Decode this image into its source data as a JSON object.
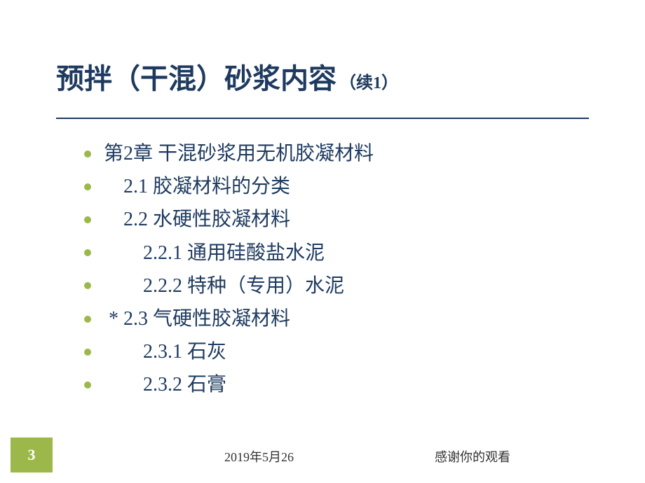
{
  "title": {
    "main": "预拌（干混）砂浆内容",
    "suffix": "（续1）",
    "title_color": "#1e3a5f",
    "title_fontsize": 40,
    "suffix_fontsize": 24
  },
  "content": {
    "items": [
      {
        "text": "第2章 干混砂浆用无机胶凝材料",
        "indent": 0
      },
      {
        "text": "2.1 胶凝材料的分类",
        "indent": 1
      },
      {
        "text": "2.2 水硬性胶凝材料",
        "indent": 1
      },
      {
        "text": "2.2.1 通用硅酸盐水泥",
        "indent": 2
      },
      {
        "text": "2.2.2 特种（专用）水泥",
        "indent": 2
      },
      {
        "text": "* 2.3 气硬性胶凝材料",
        "indent": 0,
        "prefix": " "
      },
      {
        "text": "2.3.1 石灰",
        "indent": 2
      },
      {
        "text": "2.3.2 石膏",
        "indent": 2
      }
    ],
    "text_color": "#1e3a5f",
    "text_fontsize": 28,
    "bullet_color": "#9db84a"
  },
  "footer": {
    "page_number": "3",
    "date": "2019年5月26",
    "thanks": "感谢你的观看",
    "page_box_color": "#9db84a",
    "page_number_color": "#ffffff"
  },
  "colors": {
    "background": "#ffffff",
    "accent": "#9db84a",
    "text_primary": "#1e3a5f",
    "text_footer": "#333333"
  }
}
